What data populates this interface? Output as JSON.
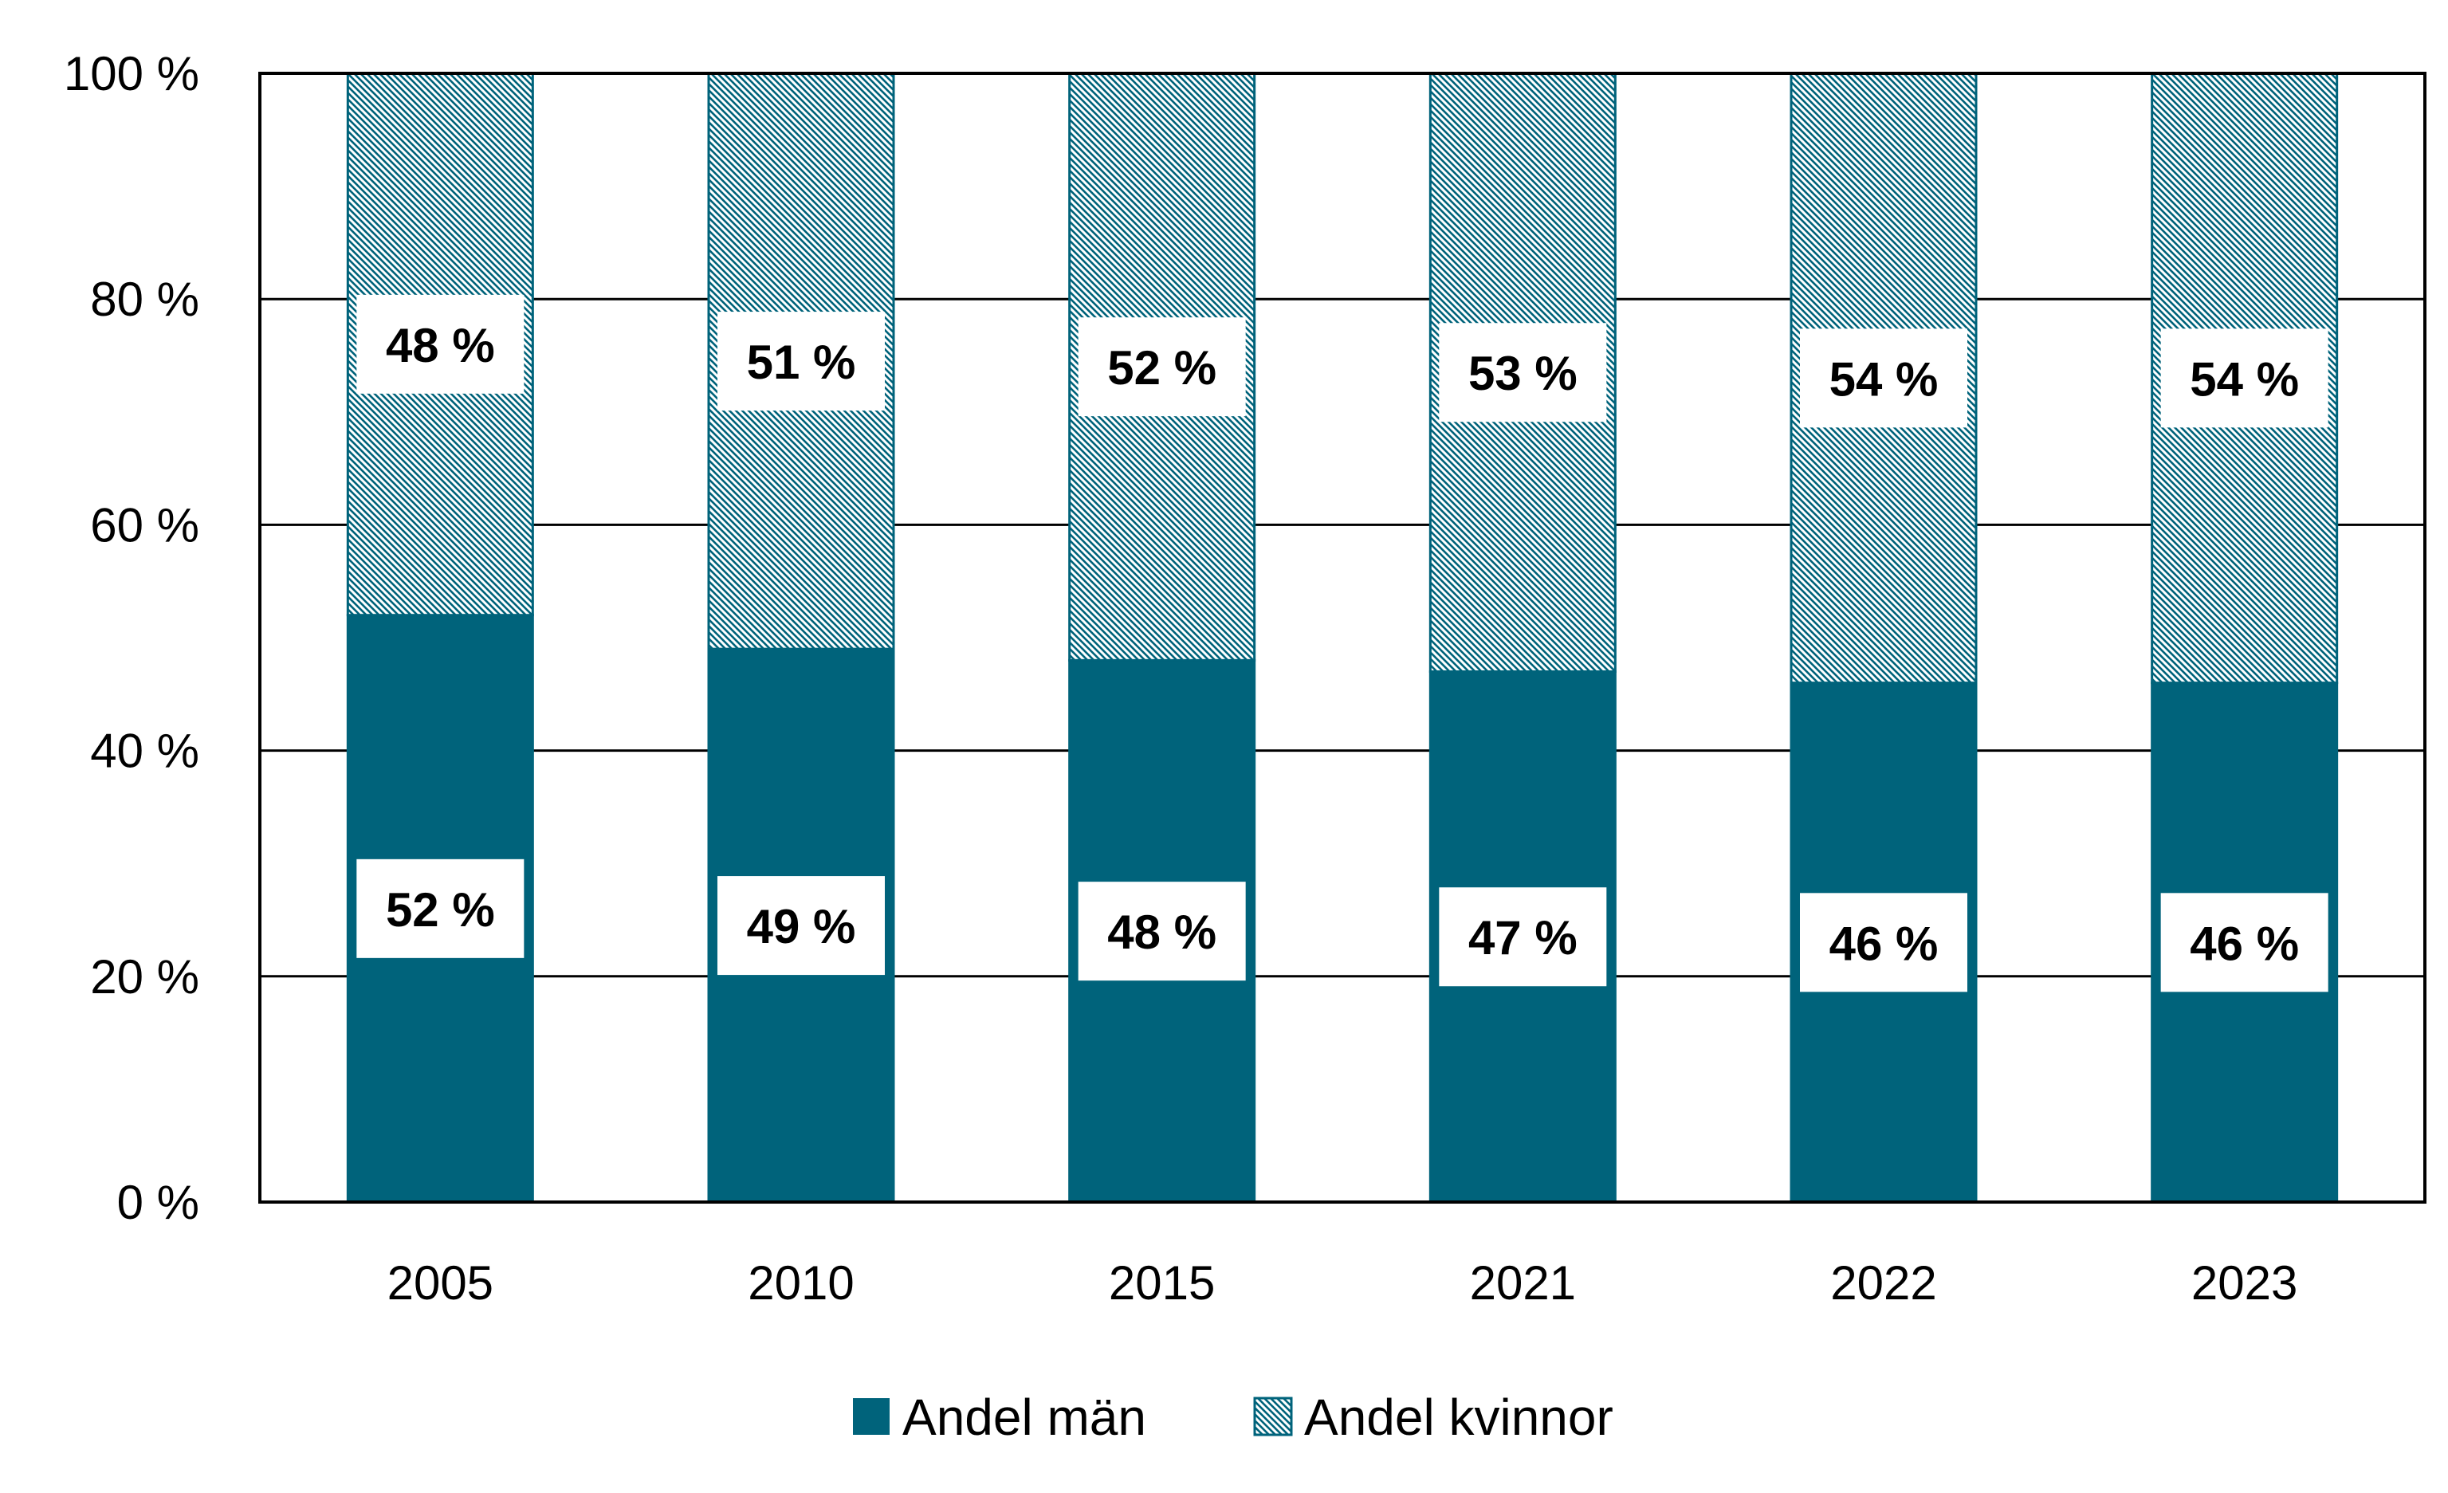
{
  "chart_data": {
    "type": "bar",
    "stacked": true,
    "percent_stacked": true,
    "categories": [
      "2005",
      "2010",
      "2015",
      "2021",
      "2022",
      "2023"
    ],
    "series": [
      {
        "name": "Andel män",
        "values": [
          52,
          49,
          48,
          47,
          46,
          46
        ],
        "labels": [
          "52 %",
          "49 %",
          "48 %",
          "47 %",
          "46 %",
          "46 %"
        ],
        "color": "#00637b",
        "fill": "solid"
      },
      {
        "name": "Andel kvinnor",
        "values": [
          48,
          51,
          52,
          53,
          54,
          54
        ],
        "labels": [
          "48 %",
          "51 %",
          "52 %",
          "53 %",
          "54 %",
          "54 %"
        ],
        "color": "#00637b",
        "fill": "hatched"
      }
    ],
    "title": "",
    "xlabel": "",
    "ylabel": "",
    "ylim": [
      0,
      100
    ],
    "yticks": [
      0,
      20,
      40,
      60,
      80,
      100
    ],
    "ytick_labels": [
      "0 %",
      "20 %",
      "40 %",
      "60 %",
      "80 %",
      "100 %"
    ],
    "grid": true,
    "legend_position": "bottom-center"
  }
}
